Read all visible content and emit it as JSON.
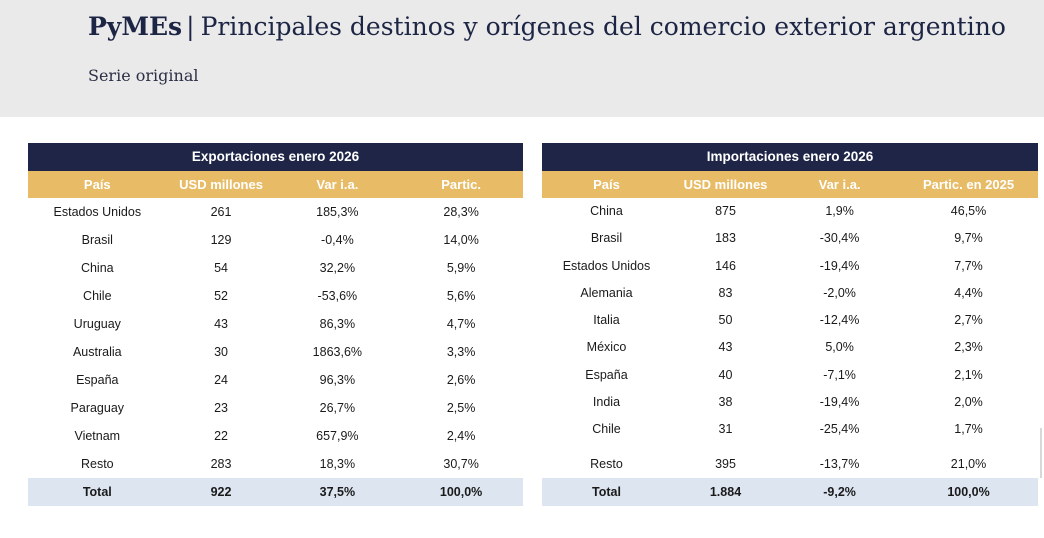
{
  "header": {
    "brand": "PyMEs",
    "separator": "|",
    "title": "Principales destinos y orígenes del comercio exterior argentino",
    "subtitle": "Serie original"
  },
  "exports": {
    "title": "Exportaciones enero 2026",
    "columns": [
      "País",
      "USD millones",
      "Var i.a.",
      "Partic."
    ],
    "rows": [
      [
        "Estados Unidos",
        "261",
        "185,3%",
        "28,3%"
      ],
      [
        "Brasil",
        "129",
        "-0,4%",
        "14,0%"
      ],
      [
        "China",
        "54",
        "32,2%",
        "5,9%"
      ],
      [
        "Chile",
        "52",
        "-53,6%",
        "5,6%"
      ],
      [
        "Uruguay",
        "43",
        "86,3%",
        "4,7%"
      ],
      [
        "Australia",
        "30",
        "1863,6%",
        "3,3%"
      ],
      [
        "España",
        "24",
        "96,3%",
        "2,6%"
      ],
      [
        "Paraguay",
        "23",
        "26,7%",
        "2,5%"
      ],
      [
        "Vietnam",
        "22",
        "657,9%",
        "2,4%"
      ],
      [
        "Resto",
        "283",
        "18,3%",
        "30,7%"
      ]
    ],
    "total": [
      "Total",
      "922",
      "37,5%",
      "100,0%"
    ]
  },
  "imports": {
    "title": "Importaciones enero 2026",
    "columns": [
      "País",
      "USD millones",
      "Var i.a.",
      "Partic. en 2025"
    ],
    "rows": [
      [
        "China",
        "875",
        "1,9%",
        "46,5%"
      ],
      [
        "Brasil",
        "183",
        "-30,4%",
        "9,7%"
      ],
      [
        "Estados Unidos",
        "146",
        "-19,4%",
        "7,7%"
      ],
      [
        "Alemania",
        "83",
        "-2,0%",
        "4,4%"
      ],
      [
        "Italia",
        "50",
        "-12,4%",
        "2,7%"
      ],
      [
        "México",
        "43",
        "5,0%",
        "2,3%"
      ],
      [
        "España",
        "40",
        "-7,1%",
        "2,1%"
      ],
      [
        "India",
        "38",
        "-19,4%",
        "2,0%"
      ],
      [
        "Chile",
        "31",
        "-25,4%",
        "1,7%"
      ],
      [
        "Resto",
        "395",
        "-13,7%",
        "21,0%"
      ]
    ],
    "total": [
      "Total",
      "1.884",
      "-9,2%",
      "100,0%"
    ]
  }
}
